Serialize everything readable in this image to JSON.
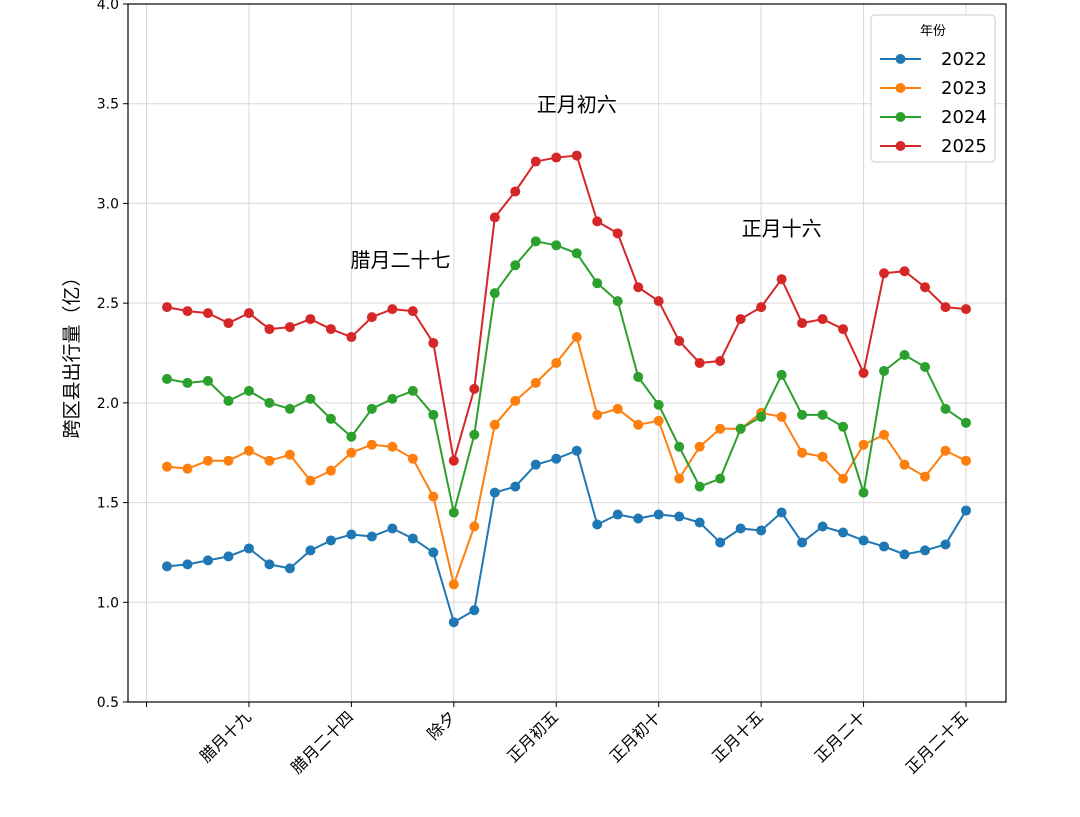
{
  "chart_data": {
    "type": "line",
    "title": "",
    "xlabel": "",
    "ylabel": "跨区县出行量（亿）",
    "ylim": [
      0.5,
      4.0
    ],
    "yticks": [
      "0.5",
      "1.0",
      "1.5",
      "2.0",
      "2.5",
      "3.0",
      "3.5",
      "4.0"
    ],
    "xlim": [
      -1,
      40
    ],
    "xticks": [
      {
        "x": 5,
        "label": "腊月十九"
      },
      {
        "x": 10,
        "label": "腊月二十四"
      },
      {
        "x": 15,
        "label": "除夕"
      },
      {
        "x": 20,
        "label": "正月初五"
      },
      {
        "x": 25,
        "label": "正月初十"
      },
      {
        "x": 30,
        "label": "正月十五"
      },
      {
        "x": 35,
        "label": "正月二十"
      },
      {
        "x": 40,
        "label": "正月二十五"
      }
    ],
    "grid": true,
    "legend": {
      "title": "年份",
      "position": "top-right"
    },
    "annotations": [
      {
        "text": "腊月二十七",
        "x": 12.4,
        "y": 2.68
      },
      {
        "text": "正月初六",
        "x": 21.0,
        "y": 3.46
      },
      {
        "text": "正月十六",
        "x": 31.0,
        "y": 2.84
      }
    ],
    "x": [
      1,
      2,
      3,
      4,
      5,
      6,
      7,
      8,
      9,
      10,
      11,
      12,
      13,
      14,
      15,
      16,
      17,
      18,
      19,
      20,
      21,
      22,
      23,
      24,
      25,
      26,
      27,
      28,
      29,
      30,
      31,
      32,
      33,
      34,
      35,
      36,
      37,
      38,
      39,
      40
    ],
    "series": [
      {
        "name": "2022",
        "color": "#1f77b4",
        "values": [
          1.18,
          1.19,
          1.21,
          1.23,
          1.27,
          1.19,
          1.17,
          1.26,
          1.31,
          1.34,
          1.33,
          1.37,
          1.32,
          1.25,
          0.9,
          0.96,
          1.55,
          1.58,
          1.69,
          1.72,
          1.76,
          1.39,
          1.44,
          1.42,
          1.44,
          1.43,
          1.4,
          1.3,
          1.37,
          1.36,
          1.45,
          1.3,
          1.38,
          1.35,
          1.31,
          1.28,
          1.24,
          1.26,
          1.29,
          1.46
        ]
      },
      {
        "name": "2023",
        "color": "#ff7f0e",
        "values": [
          1.68,
          1.67,
          1.71,
          1.71,
          1.76,
          1.71,
          1.74,
          1.61,
          1.66,
          1.75,
          1.79,
          1.78,
          1.72,
          1.53,
          1.09,
          1.38,
          1.89,
          2.01,
          2.1,
          2.2,
          2.33,
          1.94,
          1.97,
          1.89,
          1.91,
          1.62,
          1.78,
          1.87,
          1.87,
          1.95,
          1.93,
          1.75,
          1.73,
          1.62,
          1.79,
          1.84,
          1.69,
          1.63,
          1.76,
          1.71
        ]
      },
      {
        "name": "2024",
        "color": "#2ca02c",
        "values": [
          2.12,
          2.1,
          2.11,
          2.01,
          2.06,
          2.0,
          1.97,
          2.02,
          1.92,
          1.83,
          1.97,
          2.02,
          2.06,
          1.94,
          1.45,
          1.84,
          2.55,
          2.69,
          2.81,
          2.79,
          2.75,
          2.6,
          2.51,
          2.13,
          1.99,
          1.78,
          1.58,
          1.62,
          1.87,
          1.93,
          2.14,
          1.94,
          1.94,
          1.88,
          1.55,
          2.16,
          2.24,
          2.18,
          1.97,
          1.9
        ]
      },
      {
        "name": "2025",
        "color": "#d62728",
        "values": [
          2.48,
          2.46,
          2.45,
          2.4,
          2.45,
          2.37,
          2.38,
          2.42,
          2.37,
          2.33,
          2.43,
          2.47,
          2.46,
          2.3,
          1.71,
          2.07,
          2.93,
          3.06,
          3.21,
          3.23,
          3.24,
          2.91,
          2.85,
          2.58,
          2.51,
          2.31,
          2.2,
          2.21,
          2.42,
          2.48,
          2.62,
          2.4,
          2.42,
          2.37,
          2.15,
          2.65,
          2.66,
          2.58,
          2.48,
          2.47
        ]
      }
    ]
  }
}
